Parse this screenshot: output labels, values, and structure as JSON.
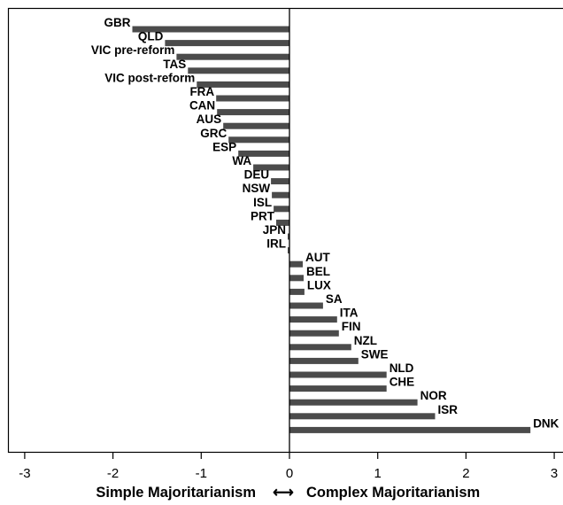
{
  "chart_data": {
    "type": "bar",
    "orientation": "horizontal",
    "categories": [
      "GBR",
      "QLD",
      "VIC pre-reform",
      "TAS",
      "VIC post-reform",
      "FRA",
      "CAN",
      "AUS",
      "GRC",
      "ESP",
      "WA",
      "DEU",
      "NSW",
      "ISL",
      "PRT",
      "JPN",
      "IRL",
      "AUT",
      "BEL",
      "LUX",
      "SA",
      "ITA",
      "FIN",
      "NZL",
      "SWE",
      "NLD",
      "CHE",
      "NOR",
      "ISR",
      "DNK"
    ],
    "values": [
      -1.78,
      -1.41,
      -1.28,
      -1.15,
      -1.05,
      -0.83,
      -0.82,
      -0.75,
      -0.69,
      -0.58,
      -0.41,
      -0.21,
      -0.2,
      -0.18,
      -0.15,
      -0.02,
      -0.02,
      0.15,
      0.16,
      0.17,
      0.38,
      0.54,
      0.56,
      0.7,
      0.78,
      1.1,
      1.1,
      1.45,
      1.65,
      2.73
    ],
    "xlim": [
      -3,
      3
    ],
    "xticks": [
      "-3",
      "-2",
      "-1",
      "0",
      "1",
      "2",
      "3"
    ],
    "xlabel_left": "Simple Majoritarianism",
    "xlabel_arrow": "⟷",
    "xlabel_right": "Complex Majoritarianism",
    "colors": {
      "bar": "#4b4b4b",
      "axis": "#000000",
      "background": "#ffffff"
    }
  }
}
